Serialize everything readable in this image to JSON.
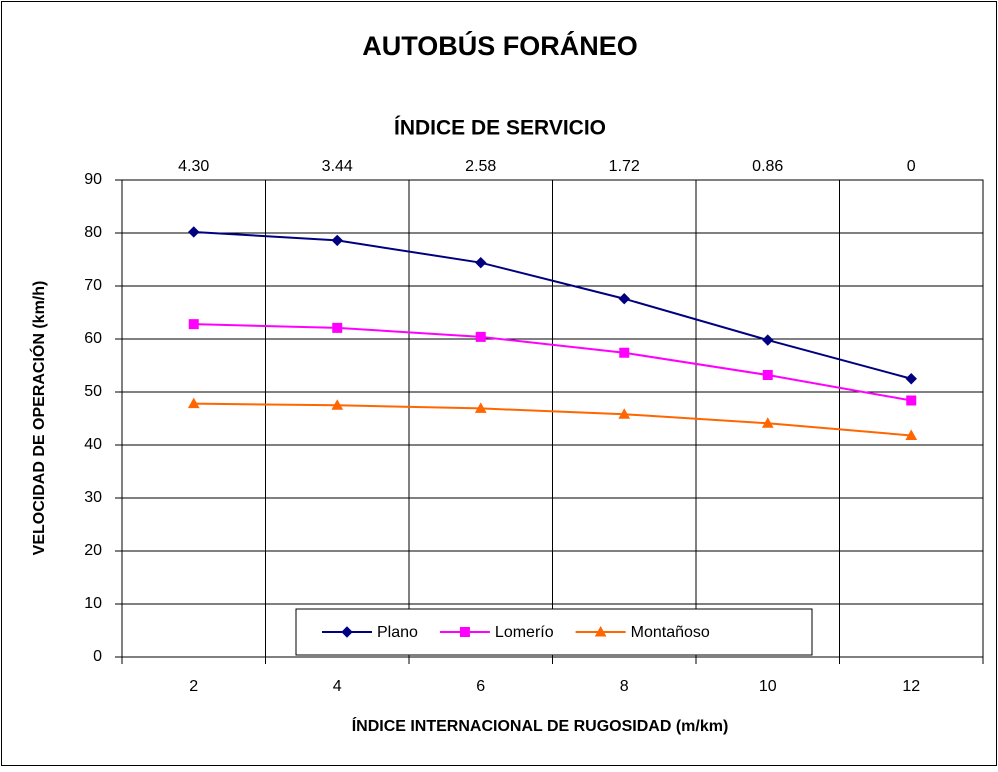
{
  "chart_data": {
    "type": "line",
    "title": "AUTOBÚS FORÁNEO",
    "top_axis_label": "ÍNDICE DE SERVICIO",
    "top_categories": [
      "4.30",
      "3.44",
      "2.58",
      "1.72",
      "0.86",
      "0"
    ],
    "x_label": "ÍNDICE INTERNACIONAL DE RUGOSIDAD (m/km)",
    "y_label": "VELOCIDAD DE OPERACIÓN (km/h)",
    "categories": [
      "2",
      "4",
      "6",
      "8",
      "10",
      "12"
    ],
    "series": [
      {
        "name": "Plano",
        "color": "#000080",
        "marker": "diamond",
        "values": [
          80.2,
          78.6,
          74.4,
          67.6,
          59.8,
          52.5
        ]
      },
      {
        "name": "Lomerío",
        "color": "#ff00ff",
        "marker": "square",
        "values": [
          62.8,
          62.1,
          60.4,
          57.4,
          53.2,
          48.4
        ]
      },
      {
        "name": "Montañoso",
        "color": "#ff6600",
        "marker": "triangle",
        "values": [
          47.8,
          47.5,
          46.9,
          45.8,
          44.1,
          41.8
        ]
      }
    ],
    "ylim": [
      0,
      90
    ],
    "yticks": [
      0,
      10,
      20,
      30,
      40,
      50,
      60,
      70,
      80,
      90
    ],
    "grid": true,
    "legend": "bottom"
  }
}
